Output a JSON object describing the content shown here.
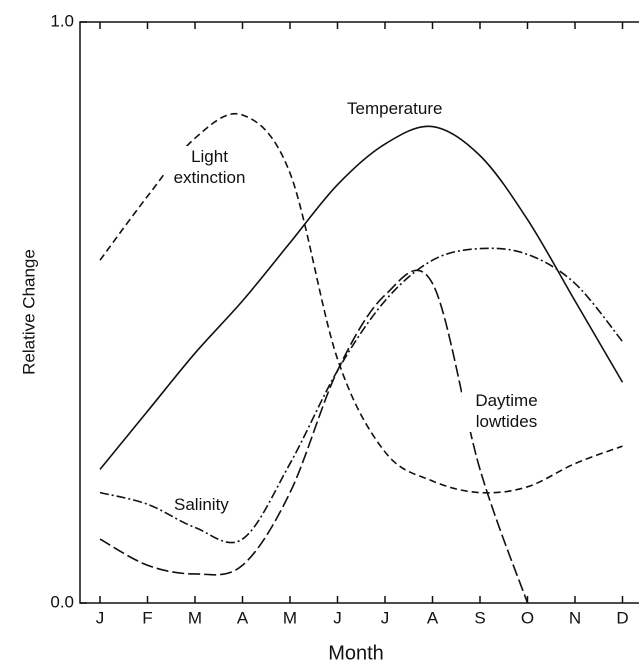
{
  "chart_data": {
    "type": "line",
    "y_label": "Relative Change",
    "x_label": "Month",
    "categories": [
      "J",
      "F",
      "M",
      "A",
      "M",
      "J",
      "J",
      "A",
      "S",
      "O",
      "N",
      "D"
    ],
    "series": [
      {
        "name": "Temperature",
        "color": "#111111",
        "style": "solid",
        "values": [
          0.23,
          0.33,
          0.43,
          0.52,
          0.62,
          0.72,
          0.79,
          0.82,
          0.77,
          0.66,
          0.52,
          0.38
        ]
      },
      {
        "name": "Light extinction",
        "color": "#111111",
        "style": "dashed",
        "values": [
          0.59,
          0.7,
          0.8,
          0.84,
          0.74,
          0.42,
          0.26,
          0.21,
          0.19,
          0.2,
          0.24,
          0.27
        ]
      },
      {
        "name": "Salinity",
        "color": "#111111",
        "style": "dashdot",
        "values": [
          0.19,
          0.17,
          0.13,
          0.11,
          0.24,
          0.4,
          0.52,
          0.59,
          0.61,
          0.6,
          0.55,
          0.45
        ]
      },
      {
        "name": "Daytime lowtides",
        "color": "#111111",
        "style": "longdash",
        "values": [
          0.11,
          0.065,
          0.05,
          0.065,
          0.19,
          0.4,
          0.53,
          0.55,
          0.23,
          0,
          null,
          null
        ]
      }
    ],
    "ylim": [
      0,
      1
    ],
    "yticks": [
      {
        "value": 0,
        "label": "0.0"
      },
      {
        "value": 1,
        "label": "1.0"
      }
    ]
  }
}
